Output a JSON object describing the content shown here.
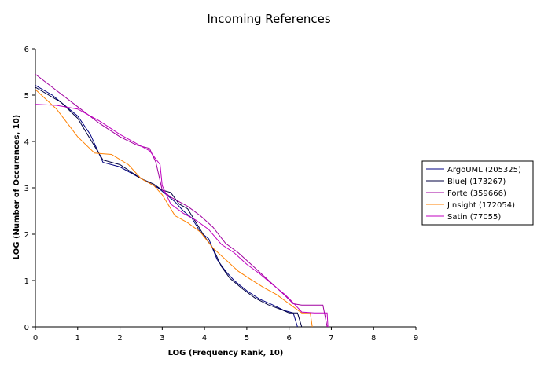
{
  "chart_data": {
    "type": "line",
    "title": "Incoming References",
    "xlabel": "LOG (Frequency Rank, 10)",
    "ylabel": "LOG (Number of Occurences, 10)",
    "xlim": [
      0,
      9
    ],
    "ylim": [
      0,
      6
    ],
    "xticks": [
      "0",
      "1",
      "2",
      "3",
      "4",
      "5",
      "6",
      "7",
      "8",
      "9"
    ],
    "yticks": [
      "0",
      "1",
      "2",
      "3",
      "4",
      "5",
      "6"
    ],
    "grid": false,
    "legend_position": "right",
    "series": [
      {
        "name": "ArgoUML (205325)",
        "color": "#000080",
        "points": [
          [
            0,
            5.21
          ],
          [
            0.4,
            5.0
          ],
          [
            1.0,
            4.55
          ],
          [
            1.3,
            4.15
          ],
          [
            1.6,
            3.55
          ],
          [
            2.0,
            3.45
          ],
          [
            2.5,
            3.2
          ],
          [
            2.9,
            3.0
          ],
          [
            3.1,
            2.85
          ],
          [
            3.3,
            2.7
          ],
          [
            3.5,
            2.5
          ],
          [
            3.7,
            2.35
          ],
          [
            3.9,
            2.05
          ],
          [
            4.1,
            1.9
          ],
          [
            4.3,
            1.45
          ],
          [
            4.5,
            1.2
          ],
          [
            4.7,
            1.0
          ],
          [
            5.0,
            0.78
          ],
          [
            5.3,
            0.6
          ],
          [
            5.6,
            0.48
          ],
          [
            5.9,
            0.35
          ],
          [
            6.1,
            0.3
          ],
          [
            6.2,
            0.0
          ]
        ]
      },
      {
        "name": "BlueJ (173267)",
        "color": "#000040",
        "points": [
          [
            0,
            5.17
          ],
          [
            0.6,
            4.85
          ],
          [
            1.0,
            4.5
          ],
          [
            1.3,
            4.05
          ],
          [
            1.6,
            3.6
          ],
          [
            2.0,
            3.5
          ],
          [
            2.5,
            3.2
          ],
          [
            2.8,
            3.08
          ],
          [
            3.0,
            2.95
          ],
          [
            3.2,
            2.9
          ],
          [
            3.4,
            2.65
          ],
          [
            3.6,
            2.55
          ],
          [
            3.8,
            2.25
          ],
          [
            4.0,
            1.95
          ],
          [
            4.2,
            1.7
          ],
          [
            4.4,
            1.3
          ],
          [
            4.6,
            1.05
          ],
          [
            4.9,
            0.82
          ],
          [
            5.2,
            0.62
          ],
          [
            5.5,
            0.48
          ],
          [
            5.8,
            0.38
          ],
          [
            6.0,
            0.3
          ],
          [
            6.2,
            0.3
          ],
          [
            6.3,
            0.0
          ]
        ]
      },
      {
        "name": "Forte (359666)",
        "color": "#a000a0",
        "points": [
          [
            0,
            5.45
          ],
          [
            0.5,
            5.1
          ],
          [
            1.0,
            4.75
          ],
          [
            1.5,
            4.4
          ],
          [
            2.0,
            4.1
          ],
          [
            2.4,
            3.92
          ],
          [
            2.7,
            3.85
          ],
          [
            2.85,
            3.55
          ],
          [
            3.0,
            2.95
          ],
          [
            3.2,
            2.8
          ],
          [
            3.6,
            2.6
          ],
          [
            3.9,
            2.4
          ],
          [
            4.2,
            2.15
          ],
          [
            4.5,
            1.8
          ],
          [
            4.8,
            1.6
          ],
          [
            5.1,
            1.35
          ],
          [
            5.4,
            1.1
          ],
          [
            5.7,
            0.85
          ],
          [
            5.9,
            0.68
          ],
          [
            6.1,
            0.5
          ],
          [
            6.3,
            0.47
          ],
          [
            6.6,
            0.47
          ],
          [
            6.8,
            0.47
          ],
          [
            6.9,
            0.0
          ]
        ]
      },
      {
        "name": "JInsight (172054)",
        "color": "#ff8000",
        "points": [
          [
            0,
            5.12
          ],
          [
            0.5,
            4.7
          ],
          [
            1.0,
            4.1
          ],
          [
            1.4,
            3.75
          ],
          [
            1.8,
            3.72
          ],
          [
            2.2,
            3.5
          ],
          [
            2.5,
            3.2
          ],
          [
            2.8,
            3.05
          ],
          [
            3.0,
            2.85
          ],
          [
            3.3,
            2.4
          ],
          [
            3.6,
            2.25
          ],
          [
            3.9,
            2.05
          ],
          [
            4.2,
            1.7
          ],
          [
            4.5,
            1.45
          ],
          [
            4.8,
            1.2
          ],
          [
            5.1,
            1.02
          ],
          [
            5.4,
            0.85
          ],
          [
            5.7,
            0.7
          ],
          [
            6.0,
            0.5
          ],
          [
            6.3,
            0.3
          ],
          [
            6.5,
            0.3
          ],
          [
            6.55,
            0.0
          ]
        ]
      },
      {
        "name": "Satin (77055)",
        "color": "#c000c0",
        "points": [
          [
            0,
            4.8
          ],
          [
            0.5,
            4.78
          ],
          [
            1.0,
            4.7
          ],
          [
            1.5,
            4.45
          ],
          [
            2.0,
            4.15
          ],
          [
            2.4,
            3.95
          ],
          [
            2.7,
            3.8
          ],
          [
            2.95,
            3.5
          ],
          [
            3.0,
            3.05
          ],
          [
            3.2,
            2.65
          ],
          [
            3.5,
            2.45
          ],
          [
            3.8,
            2.3
          ],
          [
            4.1,
            2.1
          ],
          [
            4.4,
            1.78
          ],
          [
            4.7,
            1.6
          ],
          [
            5.0,
            1.35
          ],
          [
            5.3,
            1.15
          ],
          [
            5.6,
            0.92
          ],
          [
            5.9,
            0.7
          ],
          [
            6.1,
            0.52
          ],
          [
            6.3,
            0.32
          ],
          [
            6.6,
            0.3
          ],
          [
            6.9,
            0.3
          ],
          [
            6.92,
            0.0
          ]
        ]
      }
    ]
  }
}
